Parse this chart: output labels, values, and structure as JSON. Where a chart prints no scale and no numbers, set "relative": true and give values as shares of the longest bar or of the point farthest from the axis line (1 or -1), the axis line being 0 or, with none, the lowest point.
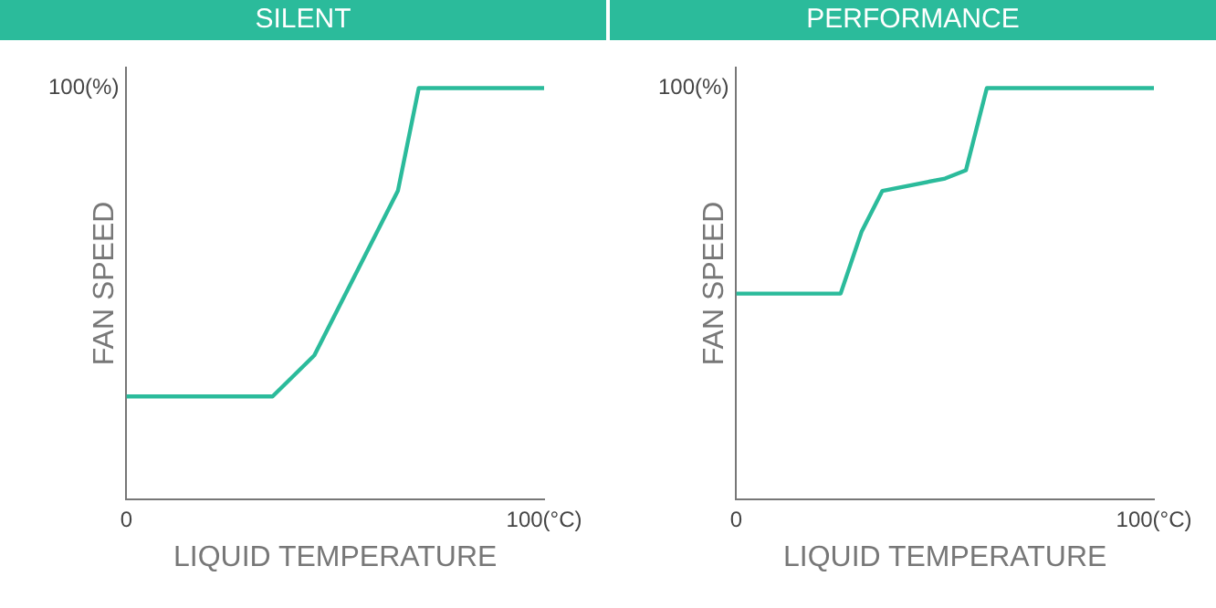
{
  "chart_data": [
    {
      "type": "line",
      "title": "SILENT",
      "xlabel": "LIQUID TEMPERATURE",
      "ylabel": "FAN SPEED",
      "relative": true,
      "xlim": [
        0,
        100
      ],
      "xticks": [
        0,
        {
          "value": 100,
          "label": "100(°C)"
        }
      ],
      "annotations": [
        "100(%)"
      ],
      "grid": false,
      "legend": false,
      "marker": "none",
      "series": [
        {
          "color": "#2bbb9b",
          "x": [
            0,
            35,
            45,
            65,
            70,
            100
          ],
          "values": [
            0.25,
            0.25,
            0.35,
            0.75,
            1,
            1
          ]
        }
      ]
    },
    {
      "type": "line",
      "title": "PERFORMANCE",
      "xlabel": "LIQUID TEMPERATURE",
      "ylabel": "FAN SPEED",
      "relative": true,
      "xlim": [
        0,
        100
      ],
      "xticks": [
        0,
        {
          "value": 100,
          "label": "100(°C)"
        }
      ],
      "annotations": [
        "100(%)"
      ],
      "grid": false,
      "legend": false,
      "marker": "none",
      "series": [
        {
          "color": "#2bbb9b",
          "x": [
            0,
            25,
            30,
            35,
            50,
            55,
            60,
            100
          ],
          "values": [
            0.5,
            0.5,
            0.65,
            0.75,
            0.78,
            0.8,
            1,
            1
          ]
        }
      ]
    }
  ]
}
